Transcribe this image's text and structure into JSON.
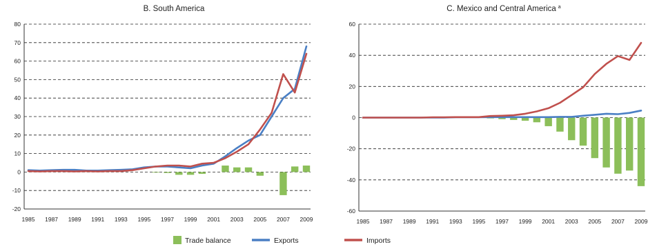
{
  "chart_data": [
    {
      "type": "line",
      "title": "B. South America",
      "ylim": [
        -20,
        80
      ],
      "yticks": [
        -20,
        -10,
        0,
        10,
        20,
        30,
        40,
        50,
        60,
        70,
        80
      ],
      "xlim": [
        1985,
        2009
      ],
      "xticks": [
        1985,
        1987,
        1989,
        1991,
        1993,
        1995,
        1997,
        1999,
        2001,
        2003,
        2005,
        2007,
        2009
      ],
      "grid": "horizontal-dashed",
      "x": [
        1985,
        1986,
        1987,
        1988,
        1989,
        1990,
        1991,
        1992,
        1993,
        1994,
        1995,
        1996,
        1997,
        1998,
        1999,
        2000,
        2001,
        2002,
        2003,
        2004,
        2005,
        2006,
        2007,
        2008,
        2009
      ],
      "series": [
        {
          "name": "Trade balance",
          "kind": "bar",
          "color": "#8cbf5a",
          "values": [
            0,
            0,
            0,
            0,
            0,
            0,
            0,
            0,
            0,
            0,
            0,
            -0.3,
            -0.5,
            -1.5,
            -1.5,
            -1,
            0,
            3.5,
            2.5,
            2.5,
            -2,
            0,
            -12.5,
            3,
            3.5
          ]
        },
        {
          "name": "Exports",
          "kind": "line",
          "color": "#4a7fc4",
          "values": [
            1,
            0.8,
            1,
            1.2,
            1.2,
            0.8,
            0.8,
            1,
            1.2,
            1.5,
            2.5,
            3,
            3,
            2.5,
            2,
            3.5,
            4.5,
            8.5,
            13,
            17,
            20,
            30,
            40,
            45,
            68
          ]
        },
        {
          "name": "Imports",
          "kind": "line",
          "color": "#c0504d",
          "values": [
            0.5,
            0.3,
            0.5,
            0.5,
            0.3,
            0.5,
            0.3,
            0.5,
            0.5,
            1,
            2,
            3,
            3.5,
            3.5,
            3,
            4.5,
            5,
            7.5,
            11,
            15,
            23,
            32,
            53,
            43,
            64
          ]
        }
      ]
    },
    {
      "type": "line",
      "title": "C. Mexico and Central America",
      "title_note": "a",
      "ylim": [
        -60,
        60
      ],
      "yticks": [
        -60,
        -40,
        -20,
        0,
        20,
        40,
        60
      ],
      "xlim": [
        1985,
        2009
      ],
      "xticks": [
        1985,
        1987,
        1989,
        1991,
        1993,
        1995,
        1997,
        1999,
        2001,
        2003,
        2005,
        2007,
        2009
      ],
      "grid": "horizontal-dashed",
      "x": [
        1985,
        1986,
        1987,
        1988,
        1989,
        1990,
        1991,
        1992,
        1993,
        1994,
        1995,
        1996,
        1997,
        1998,
        1999,
        2000,
        2001,
        2002,
        2003,
        2004,
        2005,
        2006,
        2007,
        2008,
        2009
      ],
      "series": [
        {
          "name": "Trade balance",
          "kind": "bar",
          "color": "#8cbf5a",
          "values": [
            0,
            0,
            0,
            0,
            0,
            0,
            0,
            0,
            0,
            0,
            0,
            -0.5,
            -1,
            -1.5,
            -2,
            -3,
            -5.5,
            -9,
            -14.5,
            -18,
            -26,
            -32,
            -36,
            -34,
            -44
          ]
        },
        {
          "name": "Exports",
          "kind": "line",
          "color": "#4a7fc4",
          "values": [
            0,
            0,
            0,
            0,
            0,
            0,
            0,
            0,
            0.2,
            0.2,
            0.2,
            0.3,
            0.3,
            0.3,
            0.3,
            0.3,
            0.3,
            0.5,
            0.5,
            1.2,
            1.8,
            2.5,
            2.2,
            3,
            4.5
          ]
        },
        {
          "name": "Imports",
          "kind": "line",
          "color": "#c0504d",
          "values": [
            0,
            0,
            0,
            0,
            0,
            0,
            0.2,
            0.2,
            0.3,
            0.3,
            0.3,
            1,
            1.2,
            1.5,
            2.5,
            4,
            6,
            9.5,
            14.5,
            19.5,
            28,
            34.5,
            39.5,
            37,
            48
          ]
        }
      ]
    }
  ],
  "legend": {
    "placement": "bottom-center",
    "items": [
      {
        "label": "Trade balance",
        "color": "#8cbf5a",
        "shape": "square"
      },
      {
        "label": "Exports",
        "color": "#4a7fc4",
        "shape": "line"
      },
      {
        "label": "Imports",
        "color": "#c0504d",
        "shape": "line"
      }
    ]
  }
}
